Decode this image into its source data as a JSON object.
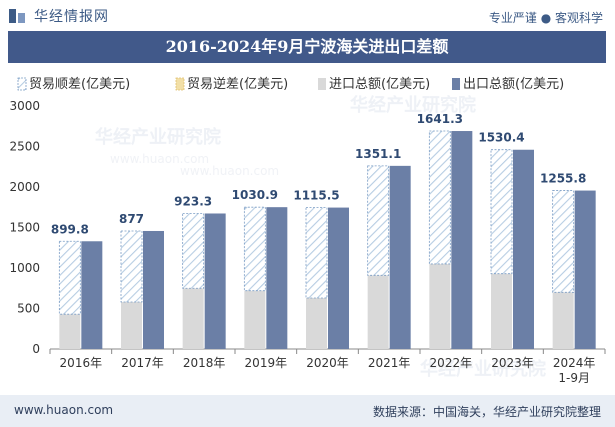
{
  "header": {
    "brand": "华经情报网",
    "tagline": "专业严谨 ● 客观科学"
  },
  "chart_data": {
    "type": "bar",
    "title": "2016-2024年9月宁波海关进出口差额",
    "categories": [
      "2016年",
      "2017年",
      "2018年",
      "2019年",
      "2020年",
      "2021年",
      "2022年",
      "2023年",
      "2024年\n1-9月"
    ],
    "series": [
      {
        "name": "贸易顺差(亿美元)",
        "values": [
          899.8,
          877,
          923.3,
          1030.9,
          1115.5,
          1351.1,
          1641.3,
          1530.4,
          1255.8
        ]
      },
      {
        "name": "贸易逆差(亿美元)",
        "values": [
          0,
          0,
          0,
          0,
          0,
          0,
          0,
          0,
          0
        ]
      },
      {
        "name": "进口总额(亿美元)",
        "values": [
          430,
          580,
          750,
          720,
          630,
          910,
          1050,
          930,
          700
        ]
      },
      {
        "name": "出口总额(亿美元)",
        "values": [
          1330,
          1457,
          1673,
          1751,
          1746,
          2261,
          2691,
          2460,
          1956
        ]
      }
    ],
    "ylim": [
      0,
      3000
    ],
    "yticks": [
      0,
      500,
      1000,
      1500,
      2000,
      2500,
      3000
    ],
    "legend_position": "top",
    "colors": {
      "surplus": "#b7cde3",
      "deficit": "#f2dfa6",
      "import": "#d9d9d9",
      "export": "#6b7fa6"
    }
  },
  "watermark": "华经产业研究院",
  "watermark_url": "www.huaon.com",
  "footer": {
    "site": "www.huaon.com",
    "source": "数据来源：中国海关，华经产业研究院整理"
  }
}
